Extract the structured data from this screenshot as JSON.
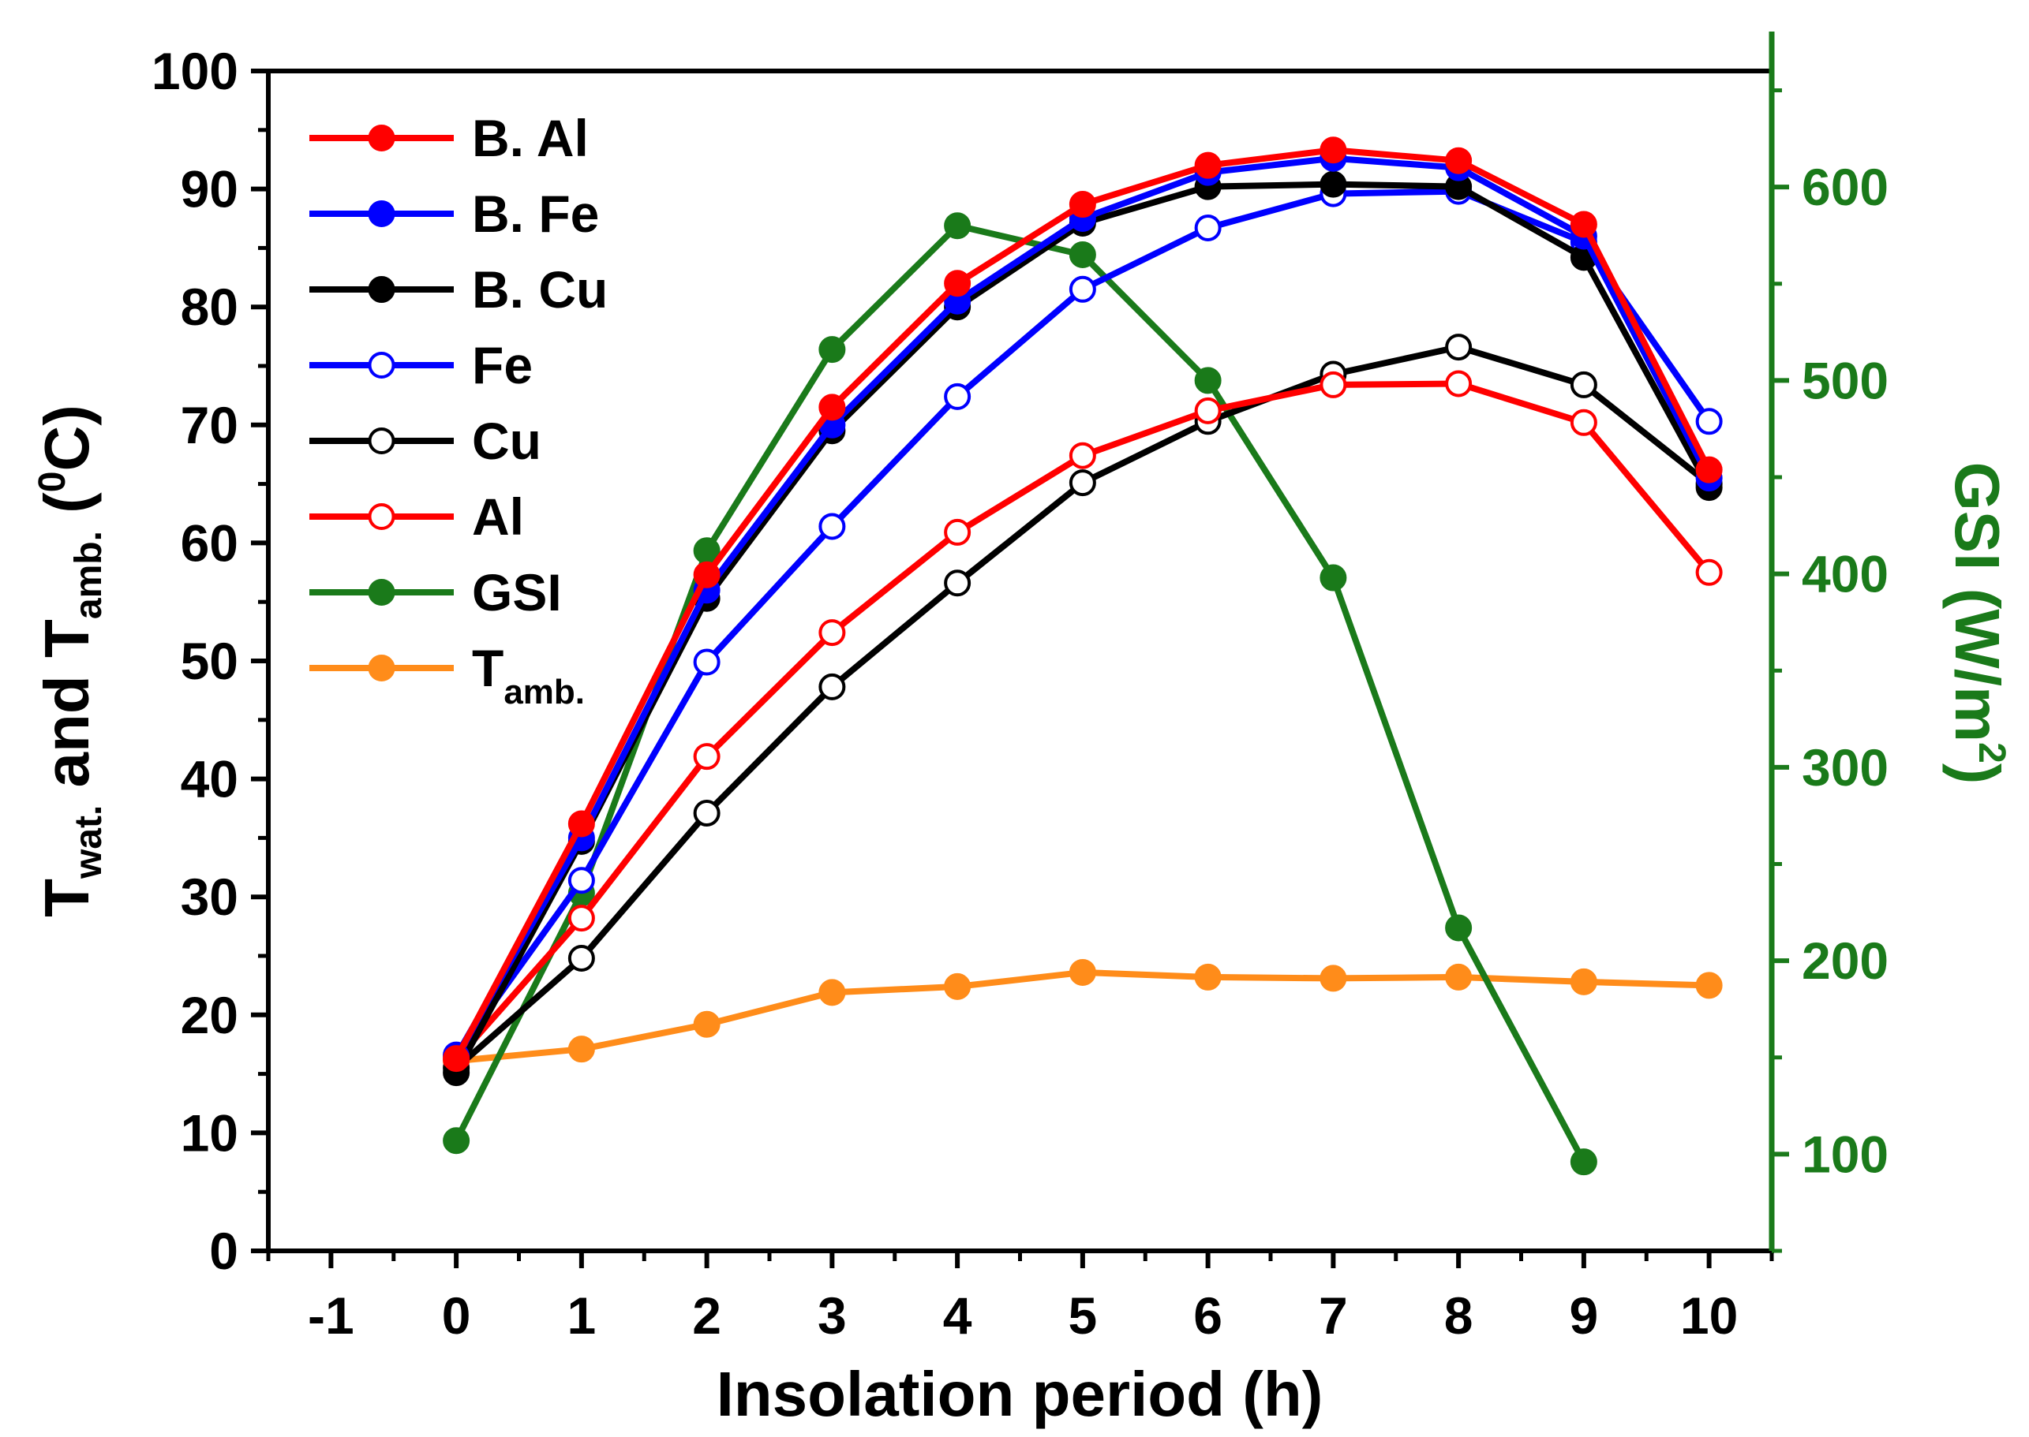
{
  "chart_data": {
    "type": "line",
    "title": "",
    "xlabel": "Insolation period (h)",
    "ylabel": {
      "main": "T",
      "sub1": "wat.",
      "conj": " and T",
      "sub2": "amb.",
      "unit_open": " (",
      "unit_sup": "0",
      "unit_close": "C)"
    },
    "y2label": {
      "main": "GSI (W/m",
      "sup": "2",
      "close": ")"
    },
    "xlim": [
      -1.5,
      10.5
    ],
    "ylim": [
      0,
      100
    ],
    "y2lim": [
      50,
      660
    ],
    "x_ticks": [
      -1,
      0,
      1,
      2,
      3,
      4,
      5,
      6,
      7,
      8,
      9,
      10
    ],
    "x_tick_labels": [
      "-1",
      "0",
      "1",
      "2",
      "3",
      "4",
      "5",
      "6",
      "7",
      "8",
      "9",
      "10"
    ],
    "y_ticks": [
      0,
      10,
      20,
      30,
      40,
      50,
      60,
      70,
      80,
      90,
      100
    ],
    "y_tick_labels": [
      "0",
      "10",
      "20",
      "30",
      "40",
      "50",
      "60",
      "70",
      "80",
      "90",
      "100"
    ],
    "y2_ticks": [
      100,
      200,
      300,
      400,
      500,
      600
    ],
    "y2_tick_labels": [
      "100",
      "200",
      "300",
      "400",
      "500",
      "600"
    ],
    "y2_color": "#1a7a1a",
    "grid": false,
    "legend_position": "top-left",
    "x": [
      0,
      1,
      2,
      3,
      4,
      5,
      6,
      7,
      8,
      9,
      10
    ],
    "series": [
      {
        "name": "B. Al",
        "color": "#ff0000",
        "filled": true,
        "axis": "left",
        "values": [
          16.3,
          36.2,
          57.3,
          71.5,
          82.0,
          88.7,
          92.0,
          93.3,
          92.4,
          87.0,
          66.2
        ]
      },
      {
        "name": "B. Fe",
        "color": "#0000ff",
        "filled": true,
        "axis": "left",
        "values": [
          16.5,
          35.0,
          56.0,
          70.0,
          80.5,
          87.5,
          91.4,
          92.6,
          91.8,
          86.0,
          65.5
        ]
      },
      {
        "name": "B. Cu",
        "color": "#000000",
        "filled": true,
        "axis": "left",
        "values": [
          15.1,
          34.7,
          55.3,
          69.5,
          80.0,
          87.1,
          90.2,
          90.4,
          90.2,
          84.2,
          64.7
        ]
      },
      {
        "name": "Fe",
        "color": "#0000ff",
        "filled": false,
        "axis": "left",
        "values": [
          16.6,
          31.4,
          49.9,
          61.4,
          72.4,
          81.5,
          86.7,
          89.6,
          89.8,
          85.5,
          70.3
        ]
      },
      {
        "name": "Cu",
        "color": "#000000",
        "filled": false,
        "axis": "left",
        "values": [
          15.5,
          24.8,
          37.1,
          47.8,
          56.6,
          65.1,
          70.3,
          74.3,
          76.6,
          73.4,
          65.0
        ]
      },
      {
        "name": "Al",
        "color": "#ff0000",
        "filled": false,
        "axis": "left",
        "values": [
          16.2,
          28.2,
          41.9,
          52.4,
          60.9,
          67.4,
          71.2,
          73.4,
          73.5,
          70.2,
          57.5
        ]
      },
      {
        "name": "GSI",
        "color": "#1a7a1a",
        "filled": true,
        "axis": "right",
        "values": [
          107,
          235,
          412,
          516,
          580,
          565,
          500,
          398,
          217,
          96,
          null
        ]
      },
      {
        "name": "T",
        "sub": "amb.",
        "color": "#ff8c1a",
        "filled": true,
        "axis": "left",
        "values": [
          16.1,
          17.1,
          19.2,
          21.9,
          22.4,
          23.6,
          23.2,
          23.1,
          23.2,
          22.8,
          22.5
        ]
      }
    ]
  }
}
